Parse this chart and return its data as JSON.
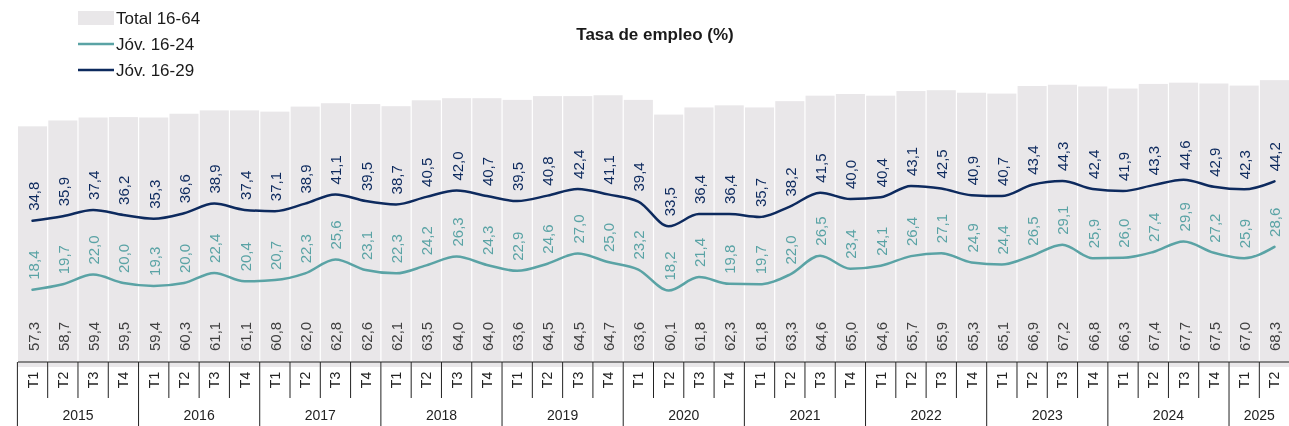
{
  "chart_data": {
    "type": "bar",
    "title": "Tasa de empleo (%)",
    "legend": "top left",
    "ylim": [
      0,
      85
    ],
    "tick_labels": "x",
    "categories": [
      "T1",
      "T2",
      "T3",
      "T4",
      "T1",
      "T2",
      "T3",
      "T4",
      "T1",
      "T2",
      "T3",
      "T4",
      "T1",
      "T2",
      "T3",
      "T4",
      "T1",
      "T2",
      "T3",
      "T4",
      "T1",
      "T2",
      "T3",
      "T4",
      "T1",
      "T2",
      "T3",
      "T4",
      "T1",
      "T2",
      "T3",
      "T4",
      "T1",
      "T2",
      "T3",
      "T4",
      "T1",
      "T2",
      "T3",
      "T4",
      "T1",
      "T2"
    ],
    "annotations": [
      "2015",
      "2016",
      "2017",
      "2018",
      "2019",
      "2020",
      "2021",
      "2022",
      "2023",
      "2024",
      "2025"
    ],
    "series": [
      {
        "name": "Total 16-64",
        "color": "#e9e7e9",
        "values": [
          57.3,
          58.7,
          59.4,
          59.5,
          59.4,
          60.3,
          61.1,
          61.1,
          60.8,
          62.0,
          62.8,
          62.6,
          62.1,
          63.5,
          64.0,
          64.0,
          63.6,
          64.5,
          64.5,
          64.7,
          63.6,
          60.1,
          61.8,
          62.3,
          61.8,
          63.3,
          64.6,
          65.0,
          64.6,
          65.7,
          65.9,
          65.3,
          65.1,
          66.9,
          67.2,
          66.8,
          66.3,
          67.4,
          67.7,
          67.5,
          67.0,
          68.3
        ],
        "value_labels": [
          "57,3",
          "58,7",
          "59,4",
          "59,5",
          "59,4",
          "60,3",
          "61,1",
          "61,1",
          "60,8",
          "62,0",
          "62,8",
          "62,6",
          "62,1",
          "63,5",
          "64,0",
          "64,0",
          "63,6",
          "64,5",
          "64,5",
          "64,7",
          "63,6",
          "60,1",
          "61,8",
          "62,3",
          "61,8",
          "63,3",
          "64,6",
          "65,0",
          "64,6",
          "65,7",
          "65,9",
          "65,3",
          "65,1",
          "66,9",
          "67,2",
          "66,8",
          "66,3",
          "67,4",
          "67,7",
          "67,5",
          "67,0",
          "68,3"
        ]
      },
      {
        "name": "Jóv. 16-24",
        "type": "line",
        "color": "#5aa3a5",
        "values": [
          18.4,
          19.7,
          22.0,
          20.0,
          19.3,
          20.0,
          22.4,
          20.4,
          20.7,
          22.3,
          25.6,
          23.1,
          22.3,
          24.2,
          26.3,
          24.3,
          22.9,
          24.6,
          27.0,
          25.0,
          23.2,
          18.2,
          21.4,
          19.8,
          19.7,
          22.0,
          26.5,
          23.4,
          24.1,
          26.4,
          27.1,
          24.9,
          24.4,
          26.5,
          29.1,
          25.9,
          26.0,
          27.4,
          29.9,
          27.2,
          25.9,
          28.6
        ],
        "value_labels": [
          "18,4",
          "19,7",
          "22,0",
          "20,0",
          "19,3",
          "20,0",
          "22,4",
          "20,4",
          "20,7",
          "22,3",
          "25,6",
          "23,1",
          "22,3",
          "24,2",
          "26,3",
          "24,3",
          "22,9",
          "24,6",
          "27,0",
          "25,0",
          "23,2",
          "18,2",
          "21,4",
          "19,8",
          "19,7",
          "22,0",
          "26,5",
          "23,4",
          "24,1",
          "26,4",
          "27,1",
          "24,9",
          "24,4",
          "26,5",
          "29,1",
          "25,9",
          "26,0",
          "27,4",
          "29,9",
          "27,2",
          "25,9",
          "28,6"
        ]
      },
      {
        "name": "Jóv. 16-29",
        "type": "line",
        "color": "#0d2a5e",
        "values": [
          34.8,
          35.9,
          37.4,
          36.2,
          35.3,
          36.6,
          38.9,
          37.4,
          37.1,
          38.9,
          41.1,
          39.5,
          38.7,
          40.5,
          42.0,
          40.7,
          39.5,
          40.8,
          42.4,
          41.1,
          39.4,
          33.5,
          36.4,
          36.4,
          35.7,
          38.2,
          41.5,
          40.0,
          40.4,
          43.1,
          42.5,
          40.9,
          40.7,
          43.4,
          44.3,
          42.4,
          41.9,
          43.3,
          44.6,
          42.9,
          42.3,
          44.2
        ],
        "value_labels": [
          "34,8",
          "35,9",
          "37,4",
          "36,2",
          "35,3",
          "36,6",
          "38,9",
          "37,4",
          "37,1",
          "38,9",
          "41,1",
          "39,5",
          "38,7",
          "40,5",
          "42,0",
          "40,7",
          "39,5",
          "40,8",
          "42,4",
          "41,1",
          "39,4",
          "33,5",
          "36,4",
          "36,4",
          "35,7",
          "38,2",
          "41,5",
          "40,0",
          "40,4",
          "43,1",
          "42,5",
          "40,9",
          "40,7",
          "43,4",
          "44,3",
          "42,4",
          "41,9",
          "43,3",
          "44,6",
          "42,9",
          "42,3",
          "44,2"
        ]
      }
    ]
  }
}
